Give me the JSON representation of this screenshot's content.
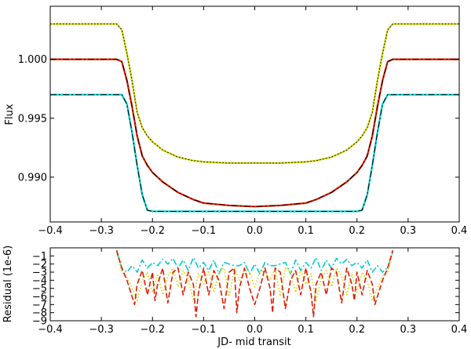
{
  "chart_data": [
    {
      "type": "line",
      "xlabel": "",
      "ylabel": "Flux",
      "xlim": [
        -0.4,
        0.4
      ],
      "ylim": [
        0.9862,
        1.0045
      ],
      "xticks": [
        -0.4,
        -0.3,
        -0.2,
        -0.1,
        0.0,
        0.1,
        0.2,
        0.3,
        0.4
      ],
      "xtick_labels": [
        "−0.4",
        "−0.3",
        "−0.2",
        "−0.1",
        "0.0",
        "0.1",
        "0.2",
        "0.3",
        "0.4"
      ],
      "yticks": [
        0.99,
        0.995,
        1.0
      ],
      "ytick_labels": [
        "0.990",
        "0.995",
        "1.000"
      ],
      "grid": false,
      "series": [
        {
          "color": "#d4d400",
          "overlay_color": "#000000",
          "style": "dotted",
          "x": [
            -0.4,
            -0.28,
            -0.27,
            -0.26,
            -0.25,
            -0.24,
            -0.23,
            -0.22,
            -0.21,
            -0.2,
            -0.18,
            -0.15,
            -0.12,
            -0.1,
            -0.05,
            0.0,
            0.05,
            0.1,
            0.12,
            0.15,
            0.18,
            0.2,
            0.21,
            0.22,
            0.23,
            0.24,
            0.25,
            0.26,
            0.27,
            0.28,
            0.4
          ],
          "y": [
            1.003,
            1.003,
            1.003,
            1.0025,
            1.0005,
            0.9982,
            0.9955,
            0.9942,
            0.9935,
            0.993,
            0.9923,
            0.9917,
            0.9914,
            0.9913,
            0.9912,
            0.9912,
            0.9912,
            0.9913,
            0.9914,
            0.9917,
            0.9923,
            0.993,
            0.9935,
            0.9942,
            0.9955,
            0.9982,
            1.0005,
            1.0025,
            1.003,
            1.003,
            1.003
          ]
        },
        {
          "color": "#dd1c00",
          "overlay_color": "#000000",
          "style": "dashdot",
          "x": [
            -0.4,
            -0.27,
            -0.26,
            -0.25,
            -0.24,
            -0.23,
            -0.22,
            -0.21,
            -0.2,
            -0.18,
            -0.15,
            -0.12,
            -0.1,
            -0.05,
            0.0,
            0.05,
            0.1,
            0.12,
            0.15,
            0.18,
            0.2,
            0.21,
            0.22,
            0.23,
            0.24,
            0.25,
            0.26,
            0.27,
            0.4
          ],
          "y": [
            1.0,
            1.0,
            0.9998,
            0.9982,
            0.996,
            0.9935,
            0.9918,
            0.991,
            0.9904,
            0.9896,
            0.9887,
            0.9881,
            0.9878,
            0.9876,
            0.9875,
            0.9876,
            0.9878,
            0.9881,
            0.9887,
            0.9896,
            0.9904,
            0.991,
            0.9918,
            0.9935,
            0.996,
            0.9982,
            0.9998,
            1.0,
            1.0
          ]
        },
        {
          "color": "#00cccc",
          "overlay_color": "#000000",
          "style": "dashdot",
          "x": [
            -0.4,
            -0.26,
            -0.25,
            -0.24,
            -0.23,
            -0.22,
            -0.21,
            -0.2,
            -0.1,
            0.0,
            0.1,
            0.2,
            0.21,
            0.22,
            0.23,
            0.24,
            0.25,
            0.26,
            0.4
          ],
          "y": [
            0.997,
            0.997,
            0.9962,
            0.9938,
            0.991,
            0.9885,
            0.9872,
            0.9871,
            0.9871,
            0.9871,
            0.9871,
            0.9871,
            0.9872,
            0.9885,
            0.991,
            0.9938,
            0.9962,
            0.997,
            0.997
          ]
        }
      ]
    },
    {
      "type": "line",
      "xlabel": "JD- mid transit",
      "ylabel": "Residual (1e-6)",
      "xlim": [
        -0.4,
        0.4
      ],
      "ylim": [
        -9,
        0
      ],
      "xticks": [
        -0.4,
        -0.3,
        -0.2,
        -0.1,
        0.0,
        0.1,
        0.2,
        0.3,
        0.4
      ],
      "xtick_labels": [
        "−0.4",
        "−0.3",
        "−0.2",
        "−0.1",
        "0.0",
        "0.1",
        "0.2",
        "0.3",
        "0.4"
      ],
      "yticks": [
        -9,
        -8,
        -7,
        -6,
        -5,
        -4,
        -3,
        -2,
        -1
      ],
      "ytick_labels": [
        "−9",
        "−8",
        "−7",
        "−6",
        "−5",
        "−4",
        "−3",
        "−2",
        "−1"
      ],
      "grid": false,
      "series": [
        {
          "color": "#00cccc",
          "style": "dashdot",
          "x": [
            -0.27,
            -0.26,
            -0.25,
            -0.24,
            -0.23,
            -0.22,
            -0.21,
            -0.2,
            -0.19,
            -0.18,
            -0.17,
            -0.16,
            -0.15,
            -0.14,
            -0.13,
            -0.12,
            -0.11,
            -0.1,
            -0.09,
            -0.08,
            -0.07,
            -0.06,
            -0.05,
            -0.04,
            -0.03,
            -0.02,
            -0.01,
            0.0,
            0.01,
            0.02,
            0.03,
            0.04,
            0.05,
            0.06,
            0.07,
            0.08,
            0.09,
            0.1,
            0.11,
            0.12,
            0.13,
            0.14,
            0.15,
            0.16,
            0.17,
            0.18,
            0.19,
            0.2,
            0.21,
            0.22,
            0.23,
            0.24,
            0.25,
            0.26,
            0.27
          ],
          "y": [
            -0.5,
            -2.5,
            -3.0,
            -2.2,
            -3.0,
            -1.5,
            -2.5,
            -1.8,
            -2.2,
            -1.4,
            -2.0,
            -1.3,
            -2.5,
            -1.5,
            -2.8,
            -1.2,
            -2.5,
            -1.8,
            -2.8,
            -1.5,
            -3.2,
            -1.8,
            -2.0,
            -2.2,
            -2.2,
            -1.8,
            -3.2,
            -2.0,
            -3.2,
            -1.8,
            -2.2,
            -2.2,
            -2.0,
            -1.8,
            -3.2,
            -1.5,
            -2.8,
            -1.8,
            -2.5,
            -1.2,
            -2.8,
            -1.5,
            -2.5,
            -1.3,
            -2.0,
            -1.4,
            -2.2,
            -1.8,
            -2.5,
            -1.5,
            -3.0,
            -2.2,
            -3.0,
            -2.5,
            -0.5
          ]
        },
        {
          "color": "#d4d400",
          "style": "dotted",
          "x": [
            -0.27,
            -0.26,
            -0.25,
            -0.24,
            -0.23,
            -0.22,
            -0.21,
            -0.2,
            -0.19,
            -0.18,
            -0.17,
            -0.16,
            -0.15,
            -0.14,
            -0.13,
            -0.12,
            -0.11,
            -0.1,
            -0.09,
            -0.08,
            -0.07,
            -0.06,
            -0.05,
            -0.04,
            -0.03,
            -0.02,
            -0.01,
            0.0,
            0.01,
            0.02,
            0.03,
            0.04,
            0.05,
            0.06,
            0.07,
            0.08,
            0.09,
            0.1,
            0.11,
            0.12,
            0.13,
            0.14,
            0.15,
            0.16,
            0.17,
            0.18,
            0.19,
            0.2,
            0.21,
            0.22,
            0.23,
            0.24,
            0.25,
            0.26,
            0.27
          ],
          "y": [
            -0.5,
            -3.0,
            -3.5,
            -5.0,
            -6.5,
            -4.0,
            -3.0,
            -5.5,
            -3.2,
            -5.8,
            -3.5,
            -2.5,
            -4.8,
            -2.8,
            -3.8,
            -6.5,
            -3.2,
            -4.5,
            -2.8,
            -5.5,
            -3.0,
            -2.5,
            -6.0,
            -2.5,
            -4.0,
            -2.8,
            -3.0,
            -4.8,
            -3.0,
            -2.8,
            -4.0,
            -2.5,
            -6.0,
            -2.5,
            -3.0,
            -5.5,
            -2.8,
            -4.5,
            -3.2,
            -6.5,
            -3.8,
            -2.8,
            -4.8,
            -2.5,
            -3.5,
            -5.8,
            -3.2,
            -5.5,
            -3.0,
            -4.0,
            -6.5,
            -5.0,
            -3.5,
            -3.0,
            -0.5
          ]
        },
        {
          "color": "#dd1c00",
          "style": "dashed",
          "x": [
            -0.27,
            -0.26,
            -0.25,
            -0.24,
            -0.235,
            -0.23,
            -0.22,
            -0.21,
            -0.2,
            -0.195,
            -0.19,
            -0.18,
            -0.17,
            -0.16,
            -0.15,
            -0.14,
            -0.13,
            -0.12,
            -0.115,
            -0.11,
            -0.1,
            -0.09,
            -0.08,
            -0.07,
            -0.06,
            -0.05,
            -0.04,
            -0.035,
            -0.03,
            -0.02,
            -0.01,
            0.0,
            0.01,
            0.02,
            0.03,
            0.035,
            0.04,
            0.05,
            0.06,
            0.07,
            0.08,
            0.09,
            0.1,
            0.11,
            0.115,
            0.12,
            0.13,
            0.14,
            0.15,
            0.16,
            0.17,
            0.18,
            0.19,
            0.195,
            0.2,
            0.21,
            0.22,
            0.23,
            0.235,
            0.24,
            0.25,
            0.26,
            0.27
          ],
          "y": [
            -0.3,
            -2.5,
            -4.0,
            -6.0,
            -7.0,
            -4.5,
            -2.8,
            -5.8,
            -3.0,
            -6.5,
            -4.5,
            -2.5,
            -6.8,
            -3.0,
            -2.5,
            -5.8,
            -3.0,
            -4.5,
            -8.5,
            -5.5,
            -2.5,
            -5.8,
            -2.8,
            -4.0,
            -7.5,
            -3.0,
            -2.5,
            -8.0,
            -5.0,
            -2.5,
            -5.0,
            -7.0,
            -5.0,
            -2.5,
            -5.0,
            -8.0,
            -2.5,
            -3.0,
            -7.5,
            -4.0,
            -2.8,
            -5.8,
            -2.5,
            -5.5,
            -8.5,
            -4.5,
            -3.0,
            -5.8,
            -2.5,
            -3.0,
            -6.8,
            -2.5,
            -4.5,
            -6.5,
            -3.0,
            -5.8,
            -2.8,
            -4.5,
            -7.0,
            -6.0,
            -4.0,
            -2.5,
            -0.3
          ]
        }
      ]
    }
  ]
}
